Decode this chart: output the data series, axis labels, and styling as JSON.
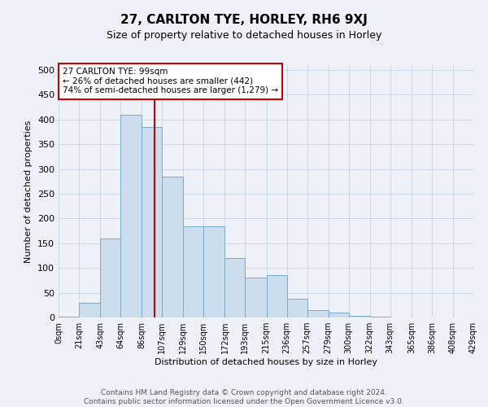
{
  "title": "27, CARLTON TYE, HORLEY, RH6 9XJ",
  "subtitle": "Size of property relative to detached houses in Horley",
  "xlabel": "Distribution of detached houses by size in Horley",
  "ylabel": "Number of detached properties",
  "footer_line1": "Contains HM Land Registry data © Crown copyright and database right 2024.",
  "footer_line2": "Contains public sector information licensed under the Open Government Licence v3.0.",
  "annotation_title": "27 CARLTON TYE: 99sqm",
  "annotation_line2": "← 26% of detached houses are smaller (442)",
  "annotation_line3": "74% of semi-detached houses are larger (1,279) →",
  "bar_color": "#ccdded",
  "bar_edge_color": "#7aaac8",
  "vline_color": "#cc0000",
  "vline_x": 99,
  "bin_edges": [
    0,
    21,
    43,
    64,
    86,
    107,
    129,
    150,
    172,
    193,
    215,
    236,
    257,
    279,
    300,
    322,
    343,
    365,
    386,
    408,
    429
  ],
  "bar_heights": [
    2,
    30,
    160,
    410,
    385,
    285,
    185,
    185,
    120,
    80,
    85,
    38,
    15,
    10,
    3,
    1,
    0,
    0,
    0,
    0
  ],
  "ylim": [
    0,
    510
  ],
  "yticks": [
    0,
    50,
    100,
    150,
    200,
    250,
    300,
    350,
    400,
    450,
    500
  ],
  "grid_color": "#c8d4e4",
  "annotation_box_color": "#ffffff",
  "annotation_box_edge": "#cc0000",
  "bg_color": "#eef2f8",
  "title_fontsize": 11,
  "subtitle_fontsize": 9,
  "ylabel_fontsize": 8,
  "xlabel_fontsize": 8,
  "tick_fontsize": 7,
  "ytick_fontsize": 8,
  "footer_fontsize": 6.5
}
